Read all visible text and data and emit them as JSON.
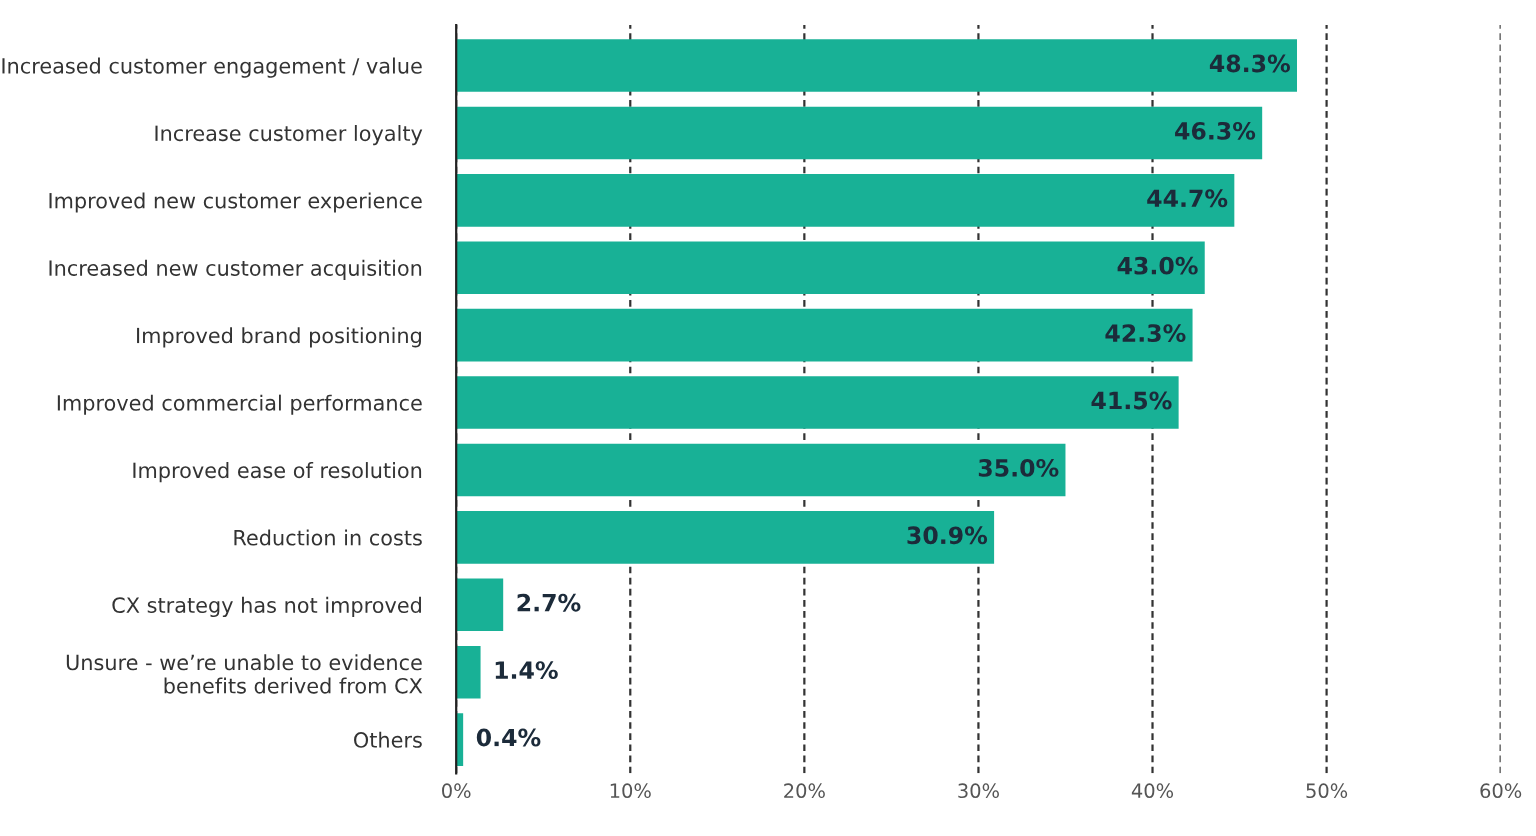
{
  "chart_data": {
    "type": "bar",
    "orientation": "horizontal",
    "categories": [
      "Increased customer engagement / value",
      "Increase customer loyalty",
      "Improved new customer experience",
      "Increased new customer acquisition",
      "Improved brand positioning",
      "Improved commercial performance",
      "Improved ease of resolution",
      "Reduction in costs",
      "CX strategy has not improved",
      "Unsure - we’re unable to evidence\nbenefits derived from CX",
      "Others"
    ],
    "values": [
      48.3,
      46.3,
      44.7,
      43.0,
      42.3,
      41.5,
      35.0,
      30.9,
      2.7,
      1.4,
      0.4
    ],
    "value_labels": [
      "48.3%",
      "46.3%",
      "44.7%",
      "43.0%",
      "42.3%",
      "41.5%",
      "35.0%",
      "30.9%",
      "2.7%",
      "1.4%",
      "0.4%"
    ],
    "color": "#18b196",
    "xlim": [
      0,
      60
    ],
    "xticks": [
      {
        "value": 0,
        "label": "0%"
      },
      {
        "value": 10,
        "label": "10%"
      },
      {
        "value": 20,
        "label": "20%"
      },
      {
        "value": 30,
        "label": "30%"
      },
      {
        "value": 40,
        "label": "40%"
      },
      {
        "value": 50,
        "label": "50%"
      },
      {
        "value": 60,
        "label": "60%"
      }
    ],
    "grid": "x",
    "legend": false
  }
}
